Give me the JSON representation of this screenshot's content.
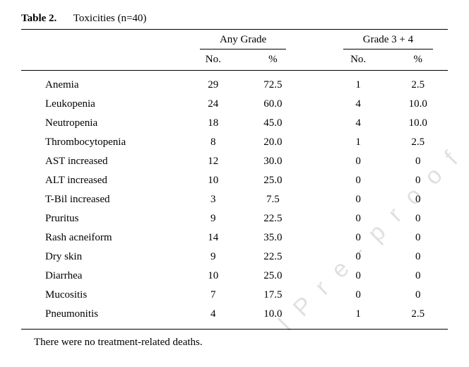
{
  "caption": {
    "label": "Table 2.",
    "title": "Toxicities (n=40)"
  },
  "columns": {
    "group1": "Any Grade",
    "group2": "Grade 3 + 4",
    "sub_no": "No.",
    "sub_pct": "%"
  },
  "rows": [
    {
      "name": "Anemia",
      "any_no": "29",
      "any_pct": "72.5",
      "g34_no": "1",
      "g34_pct": "2.5"
    },
    {
      "name": "Leukopenia",
      "any_no": "24",
      "any_pct": "60.0",
      "g34_no": "4",
      "g34_pct": "10.0"
    },
    {
      "name": "Neutropenia",
      "any_no": "18",
      "any_pct": "45.0",
      "g34_no": "4",
      "g34_pct": "10.0"
    },
    {
      "name": "Thrombocytopenia",
      "any_no": "8",
      "any_pct": "20.0",
      "g34_no": "1",
      "g34_pct": "2.5"
    },
    {
      "name": "AST increased",
      "any_no": "12",
      "any_pct": "30.0",
      "g34_no": "0",
      "g34_pct": "0"
    },
    {
      "name": "ALT increased",
      "any_no": "10",
      "any_pct": "25.0",
      "g34_no": "0",
      "g34_pct": "0"
    },
    {
      "name": "T-Bil increased",
      "any_no": "3",
      "any_pct": "7.5",
      "g34_no": "0",
      "g34_pct": "0"
    },
    {
      "name": "Pruritus",
      "any_no": "9",
      "any_pct": "22.5",
      "g34_no": "0",
      "g34_pct": "0"
    },
    {
      "name": "Rash acneiform",
      "any_no": "14",
      "any_pct": "35.0",
      "g34_no": "0",
      "g34_pct": "0"
    },
    {
      "name": "Dry skin",
      "any_no": "9",
      "any_pct": "22.5",
      "g34_no": "0",
      "g34_pct": "0"
    },
    {
      "name": "Diarrhea",
      "any_no": "10",
      "any_pct": "25.0",
      "g34_no": "0",
      "g34_pct": "0"
    },
    {
      "name": "Mucositis",
      "any_no": "7",
      "any_pct": "17.5",
      "g34_no": "0",
      "g34_pct": "0"
    },
    {
      "name": "Pneumonitis",
      "any_no": "4",
      "any_pct": "10.0",
      "g34_no": "1",
      "g34_pct": "2.5"
    }
  ],
  "footnote": "There were no treatment-related deaths.",
  "watermark": "l  P r e - p r o o f",
  "style": {
    "body_bg": "#ffffff",
    "text_color": "#000000",
    "rule_color": "#000000",
    "font_family": "Times New Roman",
    "font_size_pt": 11,
    "watermark_color": "rgba(0,0,0,0.12)",
    "watermark_rotation_deg": -45
  }
}
